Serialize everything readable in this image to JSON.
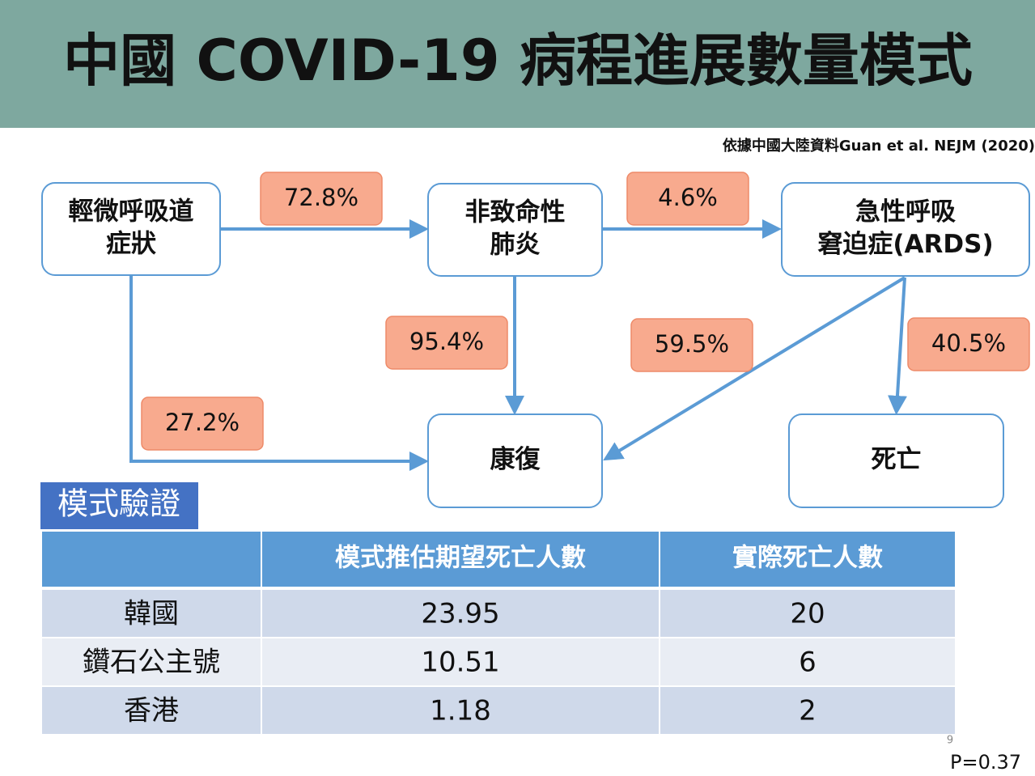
{
  "header": {
    "title": "中國 COVID-19 病程進展數量模式"
  },
  "source": "依據中國大陸資料Guan et al. NEJM (2020)",
  "nodes": [
    {
      "lines": [
        "輕微呼吸道",
        "症狀"
      ]
    },
    {
      "lines": [
        "非致命性",
        "肺炎"
      ]
    },
    {
      "lines": [
        "急性呼吸",
        "窘迫症(ARDS)"
      ]
    },
    {
      "lines": [
        "康復"
      ]
    },
    {
      "lines": [
        "死亡"
      ]
    }
  ],
  "edges": [
    {
      "label": "72.8%"
    },
    {
      "label": "4.6%"
    },
    {
      "label": "95.4%"
    },
    {
      "label": "59.5%"
    },
    {
      "label": "40.5%"
    },
    {
      "label": "27.2%"
    }
  ],
  "table": {
    "section_label": "模式驗證",
    "header": [
      "模式推估期望死亡人數",
      "實際死亡人數"
    ],
    "rows": [
      [
        "韓國",
        "23.95",
        "20"
      ],
      [
        "鑽石公主號",
        "10.51",
        "6"
      ],
      [
        "香港",
        "1.18",
        "2"
      ]
    ]
  },
  "page_number": "9",
  "p_value": "P=0.37"
}
